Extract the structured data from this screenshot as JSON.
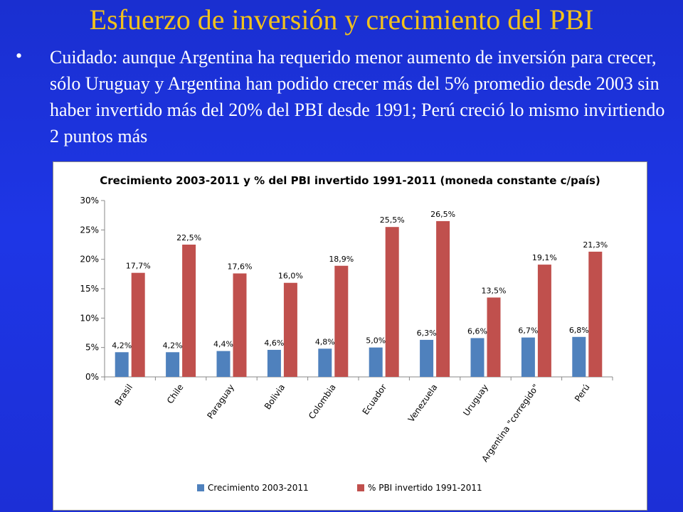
{
  "slide": {
    "title": "Esfuerzo de inversión y crecimiento del PBI",
    "bullet_char": "•",
    "bullet": "Cuidado: aunque Argentina ha requerido menor aumento de inversión para crecer, sólo Uruguay y Argentina han podido crecer más del 5% promedio desde 2003 sin haber invertido más del 20% del PBI desde 1991; Perú creció lo mismo invirtiendo 2 puntos más"
  },
  "chart_data": {
    "type": "bar",
    "title": "Crecimiento 2003-2011 y % del PBI invertido 1991-2011 (moneda constante c/país)",
    "categories": [
      "Brasil",
      "Chile",
      "Paraguay",
      "Bolivia",
      "Colombia",
      "Ecuador",
      "Venezuela",
      "Uruguay",
      "Argentina \"corregido\"",
      "Perú"
    ],
    "series": [
      {
        "name": "Crecimiento 2003-2011",
        "color": "#4f81bd",
        "values": [
          4.2,
          4.2,
          4.4,
          4.6,
          4.8,
          5.0,
          6.3,
          6.6,
          6.7,
          6.8
        ],
        "labels": [
          "4,2%",
          "4,2%",
          "4,4%",
          "4,6%",
          "4,8%",
          "5,0%",
          "6,3%",
          "6,6%",
          "6,7%",
          "6,8%"
        ]
      },
      {
        "name": "% PBI invertido 1991-2011",
        "color": "#c0504d",
        "values": [
          17.7,
          22.5,
          17.6,
          16.0,
          18.9,
          25.5,
          26.5,
          13.5,
          19.1,
          21.3
        ],
        "labels": [
          "17,7%",
          "22,5%",
          "17,6%",
          "16,0%",
          "18,9%",
          "25,5%",
          "26,5%",
          "13,5%",
          "19,1%",
          "21,3%"
        ]
      }
    ],
    "ylim": [
      0,
      30
    ],
    "yticks": [
      "0%",
      "5%",
      "10%",
      "15%",
      "20%",
      "25%",
      "30%"
    ],
    "grid": false,
    "legend_position": "bottom"
  }
}
